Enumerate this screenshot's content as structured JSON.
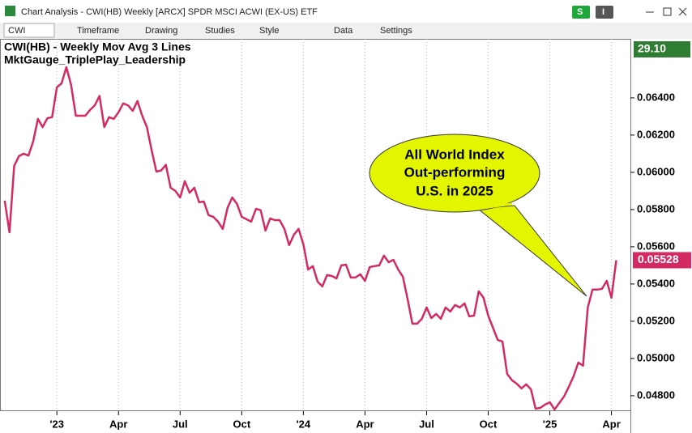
{
  "window": {
    "title": "Chart Analysis - CWI(HB) Weekly [ARCX] SPDR MSCI ACWI (EX-US) ETF",
    "buttons": [
      "S",
      "I"
    ]
  },
  "toolbar": {
    "symbol": "CWI",
    "items": [
      "Timeframe",
      "Drawing",
      "Studies",
      "Style",
      "Data",
      "Settings"
    ]
  },
  "chart_data": {
    "type": "line",
    "legend": [
      "CWI(HB) - Weekly  Mov Avg 3 Lines",
      "MktGauge_TriplePlay_Leadership"
    ],
    "price_tag": "29.10",
    "annotation": [
      "All World Index",
      "Out-performing",
      "U.S. in 2025"
    ],
    "color": "#d42a63",
    "values": [
      0.05848,
      0.05678,
      0.06035,
      0.06087,
      0.061,
      0.0609,
      0.06165,
      0.06287,
      0.06243,
      0.06291,
      0.06296,
      0.06457,
      0.06478,
      0.06565,
      0.0647,
      0.06304,
      0.06304,
      0.06304,
      0.06335,
      0.0636,
      0.0641,
      0.06243,
      0.06296,
      0.06287,
      0.06322,
      0.0637,
      0.0636,
      0.0633,
      0.06383,
      0.06304,
      0.06243,
      0.06117,
      0.06004,
      0.0601,
      0.0604,
      0.05917,
      0.059,
      0.05865,
      0.05952,
      0.0589,
      0.05917,
      0.05839,
      0.05843,
      0.0577,
      0.05761,
      0.05735,
      0.05696,
      0.05809,
      0.05865,
      0.0583,
      0.05761,
      0.05748,
      0.05735,
      0.05804,
      0.05796,
      0.05687,
      0.05752,
      0.05743,
      0.05743,
      0.05696,
      0.05609,
      0.05665,
      0.05696,
      0.05613,
      0.05478,
      0.05496,
      0.05413,
      0.05387,
      0.05448,
      0.05443,
      0.0543,
      0.055,
      0.05504,
      0.05435,
      0.05435,
      0.05452,
      0.05417,
      0.05491,
      0.05496,
      0.055,
      0.05552,
      0.05517,
      0.0553,
      0.05478,
      0.05439,
      0.05317,
      0.05187,
      0.05187,
      0.05213,
      0.05274,
      0.05217,
      0.05239,
      0.05213,
      0.05274,
      0.05252,
      0.05287,
      0.05274,
      0.05296,
      0.05226,
      0.0523,
      0.05361,
      0.05326,
      0.0523,
      0.05165,
      0.051,
      0.05091,
      0.04917,
      0.04883,
      0.04865,
      0.04839,
      0.04861,
      0.04835,
      0.0473,
      0.04735,
      0.04752,
      0.04765,
      0.04726,
      0.04761,
      0.04796,
      0.04848,
      0.04904,
      0.04978,
      0.04961,
      0.05274,
      0.0537,
      0.0537,
      0.05374,
      0.05417,
      0.05326,
      0.05528
    ],
    "xlim": [
      -1,
      132
    ],
    "xticks": [
      {
        "value": 11,
        "label": "'23"
      },
      {
        "value": 24,
        "label": "Apr"
      },
      {
        "value": 37,
        "label": "Jul"
      },
      {
        "value": 50,
        "label": "Oct"
      },
      {
        "value": 63,
        "label": "'24"
      },
      {
        "value": 76,
        "label": "Apr"
      },
      {
        "value": 89,
        "label": "Jul"
      },
      {
        "value": 102,
        "label": "Oct"
      },
      {
        "value": 115,
        "label": "'25"
      },
      {
        "value": 128,
        "label": "Apr"
      }
    ],
    "ylim": [
      0.04717,
      0.06717
    ],
    "yticks": [
      {
        "value": 0.048,
        "label": "0.04800"
      },
      {
        "value": 0.05,
        "label": "0.05000"
      },
      {
        "value": 0.052,
        "label": "0.05200"
      },
      {
        "value": 0.054,
        "label": "0.05400"
      },
      {
        "value": 0.056,
        "label": "0.05600"
      },
      {
        "value": 0.058,
        "label": "0.05800"
      },
      {
        "value": 0.06,
        "label": "0.06000"
      },
      {
        "value": 0.062,
        "label": "0.06200"
      },
      {
        "value": 0.064,
        "label": "0.06400"
      }
    ]
  }
}
